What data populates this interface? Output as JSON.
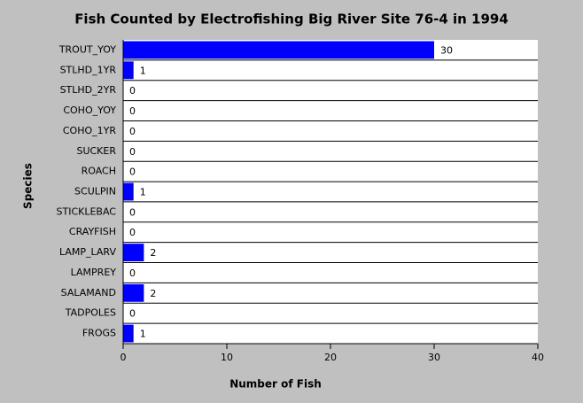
{
  "chart_data": {
    "type": "hbar",
    "title": "Fish Counted by Electrofishing Big River Site 76-4 in 1994",
    "x_label": "Number of Fish",
    "y_label": "Species",
    "categories": [
      "TROUT_YOY",
      "STLHD_1YR",
      "STLHD_2YR",
      "COHO_YOY",
      "COHO_1YR",
      "SUCKER",
      "ROACH",
      "SCULPIN",
      "STICKLEBAC",
      "CRAYFISH",
      "LAMP_LARV",
      "LAMPREY",
      "SALAMAND",
      "TADPOLES",
      "FROGS"
    ],
    "values": [
      30,
      1,
      0,
      0,
      0,
      0,
      0,
      1,
      0,
      0,
      2,
      0,
      2,
      0,
      1
    ],
    "color": "#0000ff",
    "xlim": [
      0,
      40
    ],
    "xticks": [
      0,
      10,
      20,
      30,
      40
    ]
  }
}
